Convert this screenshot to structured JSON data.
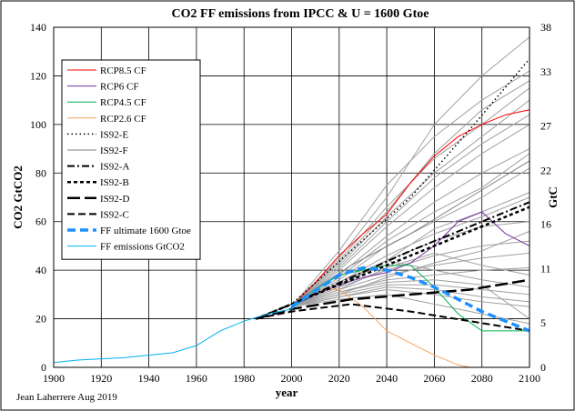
{
  "chart_data": {
    "type": "line",
    "title": "CO2 FF emissions from IPCC &  U = 1600 Gtoe",
    "xlabel": "year",
    "ylabel": "CO2 GtCO2",
    "y2label": "GtC",
    "credit": "Jean Laherrere Aug 2019",
    "xlim": [
      1900,
      2100
    ],
    "ylim": [
      0,
      140
    ],
    "y2lim": [
      0,
      38
    ],
    "x_ticks": [
      1900,
      1920,
      1940,
      1960,
      1980,
      2000,
      2020,
      2040,
      2060,
      2080,
      2100
    ],
    "y_ticks": [
      0,
      20,
      40,
      60,
      80,
      100,
      120,
      140
    ],
    "y2_ticks": [
      0,
      5,
      11,
      16,
      22,
      27,
      33,
      38
    ],
    "grid": true,
    "legend_position": "top-left",
    "colors": {
      "rcp85": "#ff0000",
      "rcp6": "#7030a0",
      "rcp45": "#00b050",
      "rcp26": "#f4a460",
      "is92": "#000000",
      "ultimate": "#1e90ff",
      "emissions": "#00b0f0",
      "scenarios": "#a0a0a0"
    },
    "series": [
      {
        "name": "RCP8.5 CF",
        "style": "solid",
        "color": "#ff0000",
        "points": [
          [
            2000,
            25
          ],
          [
            2010,
            35
          ],
          [
            2020,
            46
          ],
          [
            2030,
            55
          ],
          [
            2040,
            63
          ],
          [
            2050,
            76
          ],
          [
            2060,
            87
          ],
          [
            2070,
            95
          ],
          [
            2080,
            100
          ],
          [
            2090,
            104
          ],
          [
            2100,
            106
          ]
        ]
      },
      {
        "name": "RCP6 CF",
        "style": "solid",
        "color": "#7030a0",
        "points": [
          [
            2000,
            25
          ],
          [
            2010,
            30
          ],
          [
            2020,
            34
          ],
          [
            2030,
            37
          ],
          [
            2040,
            39
          ],
          [
            2050,
            43
          ],
          [
            2060,
            50
          ],
          [
            2070,
            60
          ],
          [
            2080,
            64
          ],
          [
            2090,
            55
          ],
          [
            2100,
            50
          ]
        ]
      },
      {
        "name": "RCP4.5 CF",
        "style": "solid",
        "color": "#00b050",
        "points": [
          [
            2000,
            25
          ],
          [
            2010,
            32
          ],
          [
            2020,
            38
          ],
          [
            2030,
            40
          ],
          [
            2040,
            42
          ],
          [
            2050,
            42
          ],
          [
            2060,
            33
          ],
          [
            2070,
            22
          ],
          [
            2080,
            15
          ],
          [
            2090,
            15
          ],
          [
            2100,
            15
          ]
        ]
      },
      {
        "name": "RCP2.6 CF",
        "style": "solid",
        "color": "#f4a460",
        "points": [
          [
            2000,
            25
          ],
          [
            2010,
            32
          ],
          [
            2020,
            32
          ],
          [
            2030,
            25
          ],
          [
            2040,
            15
          ],
          [
            2050,
            10
          ],
          [
            2060,
            5
          ],
          [
            2070,
            1
          ],
          [
            2075,
            0
          ]
        ]
      },
      {
        "name": "IS92-E",
        "style": "dotted",
        "color": "#000000",
        "points": [
          [
            1985,
            20
          ],
          [
            2000,
            26
          ],
          [
            2025,
            48
          ],
          [
            2050,
            70
          ],
          [
            2075,
            98
          ],
          [
            2100,
            127
          ]
        ]
      },
      {
        "name": "IS92-F",
        "style": "solid-thin-gray",
        "color": "#808080",
        "points": [
          [
            1985,
            20
          ],
          [
            2000,
            26
          ],
          [
            2025,
            42
          ],
          [
            2050,
            55
          ],
          [
            2075,
            70
          ],
          [
            2100,
            85
          ]
        ]
      },
      {
        "name": "IS92-A",
        "style": "dashdot",
        "color": "#000000",
        "points": [
          [
            1985,
            20
          ],
          [
            2000,
            26
          ],
          [
            2025,
            37
          ],
          [
            2050,
            48
          ],
          [
            2075,
            58
          ],
          [
            2100,
            68
          ]
        ]
      },
      {
        "name": "IS92-B",
        "style": "dashed-short",
        "color": "#000000",
        "points": [
          [
            1985,
            20
          ],
          [
            2000,
            26
          ],
          [
            2025,
            36
          ],
          [
            2050,
            46
          ],
          [
            2075,
            56
          ],
          [
            2100,
            66
          ]
        ]
      },
      {
        "name": "IS92-D",
        "style": "dashed-long",
        "color": "#000000",
        "points": [
          [
            1985,
            20
          ],
          [
            2000,
            24
          ],
          [
            2025,
            28
          ],
          [
            2050,
            30
          ],
          [
            2075,
            32
          ],
          [
            2100,
            36
          ]
        ]
      },
      {
        "name": "IS92-C",
        "style": "dashed",
        "color": "#000000",
        "points": [
          [
            1985,
            20
          ],
          [
            2000,
            23
          ],
          [
            2025,
            26
          ],
          [
            2050,
            23
          ],
          [
            2075,
            19
          ],
          [
            2100,
            15
          ]
        ]
      },
      {
        "name": "FF ultimate 1600 Gtoe",
        "style": "dashed-thick",
        "color": "#1e90ff",
        "points": [
          [
            2000,
            25
          ],
          [
            2020,
            38
          ],
          [
            2030,
            41
          ],
          [
            2040,
            40
          ],
          [
            2050,
            37
          ],
          [
            2060,
            33
          ],
          [
            2070,
            28
          ],
          [
            2080,
            23
          ],
          [
            2090,
            19
          ],
          [
            2100,
            15
          ]
        ]
      },
      {
        "name": "FF emissions GtCO2",
        "style": "solid",
        "color": "#00b0f0",
        "points": [
          [
            1900,
            2
          ],
          [
            1910,
            3
          ],
          [
            1920,
            3.5
          ],
          [
            1930,
            4
          ],
          [
            1940,
            5
          ],
          [
            1950,
            6
          ],
          [
            1960,
            9
          ],
          [
            1970,
            15
          ],
          [
            1980,
            19
          ],
          [
            1990,
            22
          ],
          [
            2000,
            24
          ],
          [
            2010,
            32
          ],
          [
            2018,
            37
          ]
        ]
      }
    ],
    "background_scenarios": [
      [
        [
          2000,
          25
        ],
        [
          2020,
          45
        ],
        [
          2040,
          70
        ],
        [
          2060,
          100
        ],
        [
          2080,
          120
        ],
        [
          2100,
          136
        ]
      ],
      [
        [
          2000,
          25
        ],
        [
          2020,
          48
        ],
        [
          2040,
          75
        ],
        [
          2060,
          95
        ],
        [
          2080,
          110
        ],
        [
          2100,
          122
        ]
      ],
      [
        [
          2000,
          25
        ],
        [
          2020,
          44
        ],
        [
          2040,
          66
        ],
        [
          2060,
          86
        ],
        [
          2080,
          100
        ],
        [
          2100,
          115
        ]
      ],
      [
        [
          2000,
          25
        ],
        [
          2020,
          42
        ],
        [
          2040,
          62
        ],
        [
          2060,
          80
        ],
        [
          2080,
          95
        ],
        [
          2100,
          110
        ]
      ],
      [
        [
          2000,
          25
        ],
        [
          2020,
          40
        ],
        [
          2040,
          58
        ],
        [
          2060,
          74
        ],
        [
          2080,
          88
        ],
        [
          2100,
          100
        ]
      ],
      [
        [
          2000,
          25
        ],
        [
          2020,
          38
        ],
        [
          2040,
          54
        ],
        [
          2060,
          68
        ],
        [
          2080,
          80
        ],
        [
          2100,
          90
        ]
      ],
      [
        [
          2000,
          25
        ],
        [
          2020,
          36
        ],
        [
          2040,
          50
        ],
        [
          2060,
          60
        ],
        [
          2080,
          70
        ],
        [
          2100,
          82
        ]
      ],
      [
        [
          2000,
          25
        ],
        [
          2020,
          35
        ],
        [
          2040,
          46
        ],
        [
          2060,
          55
        ],
        [
          2080,
          62
        ],
        [
          2100,
          70
        ]
      ],
      [
        [
          2000,
          25
        ],
        [
          2020,
          34
        ],
        [
          2040,
          44
        ],
        [
          2060,
          52
        ],
        [
          2080,
          58
        ],
        [
          2100,
          60
        ]
      ],
      [
        [
          2000,
          25
        ],
        [
          2020,
          33
        ],
        [
          2040,
          40
        ],
        [
          2060,
          46
        ],
        [
          2080,
          50
        ],
        [
          2100,
          52
        ]
      ],
      [
        [
          2000,
          25
        ],
        [
          2020,
          32
        ],
        [
          2040,
          38
        ],
        [
          2060,
          42
        ],
        [
          2080,
          45
        ],
        [
          2100,
          47
        ]
      ],
      [
        [
          2000,
          25
        ],
        [
          2020,
          31
        ],
        [
          2040,
          36
        ],
        [
          2060,
          38
        ],
        [
          2080,
          40
        ],
        [
          2100,
          41
        ]
      ],
      [
        [
          2000,
          25
        ],
        [
          2020,
          30
        ],
        [
          2040,
          34
        ],
        [
          2060,
          34
        ],
        [
          2080,
          32
        ],
        [
          2100,
          30
        ]
      ],
      [
        [
          2000,
          25
        ],
        [
          2020,
          29
        ],
        [
          2040,
          32
        ],
        [
          2060,
          30
        ],
        [
          2080,
          27
        ],
        [
          2100,
          25
        ]
      ],
      [
        [
          2000,
          25
        ],
        [
          2020,
          28
        ],
        [
          2040,
          30
        ],
        [
          2060,
          26
        ],
        [
          2080,
          22
        ],
        [
          2100,
          18
        ]
      ],
      [
        [
          2000,
          25
        ],
        [
          2020,
          30
        ],
        [
          2040,
          37
        ],
        [
          2060,
          43
        ],
        [
          2080,
          48
        ],
        [
          2100,
          56
        ]
      ],
      [
        [
          2000,
          25
        ],
        [
          2020,
          33
        ],
        [
          2040,
          44
        ],
        [
          2060,
          57
        ],
        [
          2080,
          64
        ],
        [
          2100,
          72
        ]
      ],
      [
        [
          2000,
          25
        ],
        [
          2020,
          37
        ],
        [
          2040,
          52
        ],
        [
          2060,
          64
        ],
        [
          2080,
          74
        ],
        [
          2100,
          88
        ]
      ],
      [
        [
          2000,
          25
        ],
        [
          2020,
          41
        ],
        [
          2040,
          60
        ],
        [
          2060,
          78
        ],
        [
          2080,
          92
        ],
        [
          2100,
          104
        ]
      ],
      [
        [
          2000,
          25
        ],
        [
          2020,
          43
        ],
        [
          2040,
          64
        ],
        [
          2060,
          88
        ],
        [
          2080,
          106
        ],
        [
          2100,
          118
        ]
      ],
      [
        [
          2000,
          25
        ],
        [
          2020,
          32
        ],
        [
          2040,
          41
        ],
        [
          2060,
          47
        ],
        [
          2080,
          42
        ],
        [
          2100,
          38
        ]
      ],
      [
        [
          2000,
          25
        ],
        [
          2020,
          35
        ],
        [
          2040,
          44
        ],
        [
          2060,
          40
        ],
        [
          2080,
          36
        ],
        [
          2100,
          33
        ]
      ],
      [
        [
          2000,
          25
        ],
        [
          2020,
          31
        ],
        [
          2040,
          35
        ],
        [
          2060,
          36
        ],
        [
          2080,
          34
        ],
        [
          2100,
          20
        ]
      ],
      [
        [
          2000,
          25
        ],
        [
          2020,
          29
        ],
        [
          2040,
          33
        ],
        [
          2060,
          32
        ],
        [
          2080,
          29
        ],
        [
          2100,
          27
        ]
      ]
    ]
  }
}
